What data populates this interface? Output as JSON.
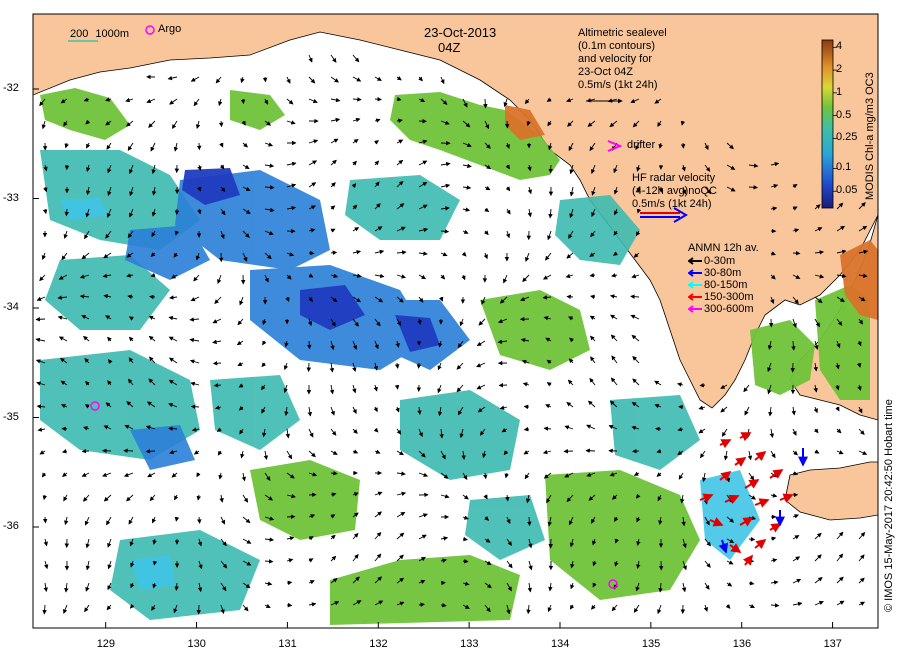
{
  "title": {
    "date": "23-Oct-2013",
    "time": "04Z"
  },
  "scale_legend": {
    "depth_200": "200",
    "depth_1000": "1000m",
    "argo": "Argo"
  },
  "altimetry_legend": {
    "line1": "Altimetric sealevel",
    "line2": "(0.1m contours)",
    "line3": "and velocity for",
    "line4": "23-Oct 04Z",
    "line5": "0.5m/s (1kt 24h)"
  },
  "drifter_label": "drifter",
  "hf_radar_legend": {
    "line1": "HF radar velocity",
    "line2": "(4-12h avg)noQC",
    "line3": "0.5m/s (1kt 24h)"
  },
  "anmn_legend": {
    "title": "ANMN 12h av.",
    "items": [
      {
        "label": "0-30m",
        "color": "#000000"
      },
      {
        "label": "30-80m",
        "color": "#0000ff"
      },
      {
        "label": "80-150m",
        "color": "#00ffff"
      },
      {
        "label": "150-300m",
        "color": "#ff0000"
      },
      {
        "label": "300-600m",
        "color": "#ff00ff"
      }
    ]
  },
  "colorbar": {
    "title": "MODIS Chl-a mg/m3 OC3",
    "ticks": [
      "4",
      "2",
      "1",
      "0.5",
      "0.25",
      "0.1",
      "0.05"
    ]
  },
  "x_axis": {
    "ticks": [
      "129",
      "130",
      "131",
      "132",
      "133",
      "134",
      "135",
      "136",
      "137"
    ]
  },
  "y_axis": {
    "ticks": [
      "-32",
      "-33",
      "-34",
      "-35",
      "-36"
    ]
  },
  "copyright": "© IMOS 15-May-2017 20:42:50 Hobart time",
  "colors": {
    "land": "#f9c59b",
    "chl_low": "#1e2fb0",
    "chl_mid": "#3db1b8",
    "chl_high": "#6fc33a",
    "chl_very_high": "#d9732a"
  }
}
